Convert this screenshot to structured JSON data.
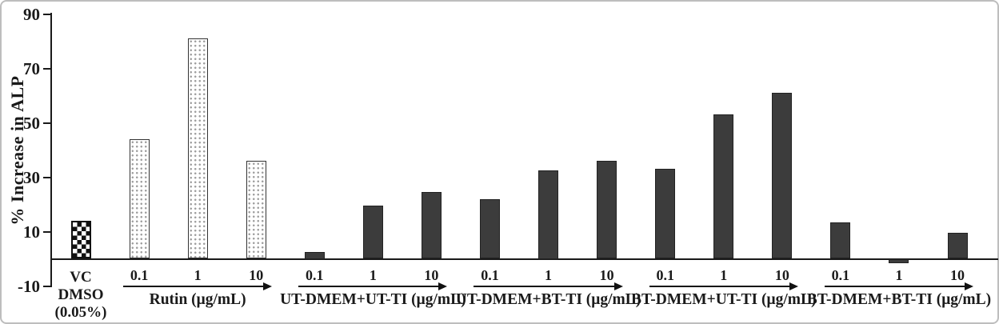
{
  "chart_data": {
    "type": "bar",
    "title": "",
    "ylabel": "% Increase in ALP",
    "xlabel": "",
    "ylim": [
      -10,
      90
    ],
    "yticks": [
      90,
      70,
      50,
      30,
      10,
      -10
    ],
    "grid": false,
    "legend": false,
    "axis_color": "#1a1a1a",
    "bar_styles": {
      "checker": "black-white checkerboard pattern",
      "dotted": "white with light gray dot pattern",
      "solid": "#3c3c3c"
    },
    "groups": [
      {
        "label": "VC DMSO (0.05%)",
        "label_lines": [
          "VC",
          "DMSO",
          "(0.05%)"
        ],
        "style": "checker",
        "arrow": false,
        "categories": [
          ""
        ],
        "values": [
          14
        ]
      },
      {
        "label": "Rutin (μg/mL)",
        "style": "dotted",
        "arrow": true,
        "categories": [
          "0.1",
          "1",
          "10"
        ],
        "values": [
          44,
          81,
          36
        ]
      },
      {
        "label": "UT-DMEM+UT-TI (μg/mL)",
        "style": "solid",
        "arrow": true,
        "categories": [
          "0.1",
          "1",
          "10"
        ],
        "values": [
          2.5,
          19.5,
          24.5
        ]
      },
      {
        "label": "UT-DMEM+BT-TI (μg/mL)",
        "style": "solid",
        "arrow": true,
        "categories": [
          "0.1",
          "1",
          "10"
        ],
        "values": [
          22,
          32.5,
          36
        ]
      },
      {
        "label": "BT-DMEM+UT-TI (μg/mL)",
        "style": "solid",
        "arrow": true,
        "categories": [
          "0.1",
          "1",
          "10"
        ],
        "values": [
          33,
          53,
          61
        ]
      },
      {
        "label": "BT-DMEM+BT-TI (μg/mL)",
        "style": "solid",
        "arrow": true,
        "categories": [
          "0.1",
          "1",
          "10"
        ],
        "values": [
          13.5,
          -1.5,
          9.5
        ]
      }
    ]
  }
}
